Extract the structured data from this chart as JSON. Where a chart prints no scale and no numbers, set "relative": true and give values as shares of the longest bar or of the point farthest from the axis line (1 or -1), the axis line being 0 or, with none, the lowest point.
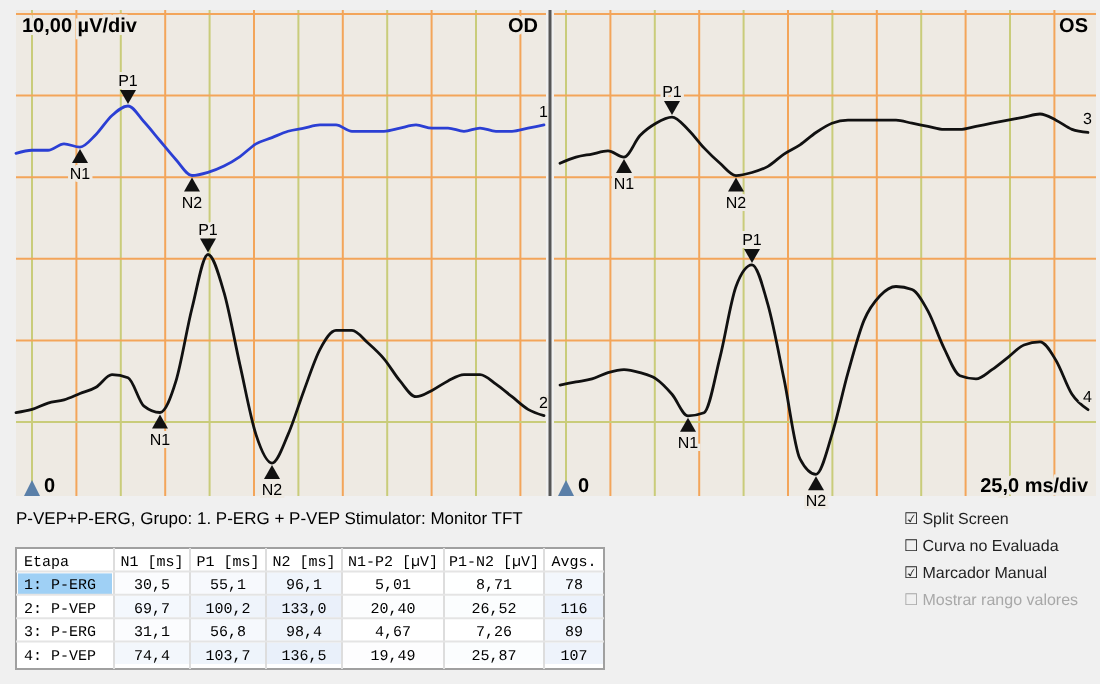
{
  "chart_data": [
    {
      "type": "line",
      "title": "OD",
      "relative": true,
      "grid": true,
      "categories": [
        null,
        null,
        null,
        null,
        null,
        null,
        null,
        null,
        null,
        null,
        null,
        null,
        null,
        null,
        null,
        null,
        null,
        null,
        null,
        null,
        null,
        null,
        null,
        null,
        null,
        null,
        null,
        null,
        null,
        null,
        null,
        null,
        null,
        null
      ],
      "annotations": [
        "10,00 µV/div",
        "0",
        {
          "text": "N1",
          "y": 0.87
        },
        {
          "text": "P1",
          "y": 1
        },
        {
          "text": "N2",
          "y": 0.78
        },
        {
          "text": "N1",
          "y": 0.03
        },
        {
          "text": "P1",
          "y": 0.53
        },
        {
          "text": "N2",
          "y": -0.13
        }
      ],
      "series": [
        {
          "name": "1",
          "color": "#2b3fd4",
          "values": [
            0.85,
            0.86,
            0.86,
            0.88,
            0.87,
            0.91,
            0.97,
            1,
            0.95,
            0.89,
            0.83,
            0.78,
            0.79,
            0.81,
            0.84,
            0.88,
            0.9,
            0.92,
            0.93,
            0.94,
            0.94,
            0.92,
            0.92,
            0.92,
            0.93,
            0.94,
            0.93,
            0.93,
            0.92,
            0.93,
            0.92,
            0.92,
            0.93,
            0.94
          ]
        },
        {
          "name": "2",
          "color": "#111111",
          "values": [
            0.03,
            0.04,
            0.06,
            0.07,
            0.09,
            0.11,
            0.15,
            0.14,
            0.05,
            0.03,
            0.13,
            0.36,
            0.53,
            0.41,
            0.18,
            -0.04,
            -0.13,
            -0.04,
            0.1,
            0.23,
            0.29,
            0.29,
            0.25,
            0.2,
            0.13,
            0.08,
            0.1,
            0.13,
            0.15,
            0.15,
            0.12,
            0.08,
            0.04,
            0.02
          ]
        }
      ]
    },
    {
      "type": "line",
      "title": "OS",
      "relative": true,
      "grid": true,
      "categories": [
        null,
        null,
        null,
        null,
        null,
        null,
        null,
        null,
        null,
        null,
        null,
        null,
        null,
        null,
        null,
        null,
        null,
        null,
        null,
        null,
        null,
        null,
        null,
        null,
        null,
        null,
        null,
        null,
        null,
        null,
        null,
        null,
        null,
        null
      ],
      "annotations": [
        "0",
        "25,0 ms/div",
        {
          "text": "N1",
          "y": 0.86
        },
        {
          "text": "P1",
          "y": 0.99
        },
        {
          "text": "N2",
          "y": 0.8
        },
        {
          "text": "N1",
          "y": 0.02
        },
        {
          "text": "P1",
          "y": 0.51
        },
        {
          "text": "N2",
          "y": -0.17
        }
      ],
      "series": [
        {
          "name": "3",
          "color": "#111111",
          "values": [
            0.84,
            0.86,
            0.87,
            0.88,
            0.86,
            0.93,
            0.97,
            0.99,
            0.95,
            0.89,
            0.84,
            0.8,
            0.81,
            0.83,
            0.87,
            0.9,
            0.94,
            0.97,
            0.98,
            0.98,
            0.98,
            0.98,
            0.97,
            0.96,
            0.95,
            0.95,
            0.96,
            0.97,
            0.98,
            0.99,
            1,
            0.98,
            0.95,
            0.94
          ]
        },
        {
          "name": "4",
          "color": "#111111",
          "values": [
            0.12,
            0.13,
            0.14,
            0.16,
            0.17,
            0.16,
            0.14,
            0.09,
            0.02,
            0.03,
            0.21,
            0.44,
            0.51,
            0.38,
            0.14,
            -0.12,
            -0.17,
            -0.04,
            0.16,
            0.33,
            0.41,
            0.44,
            0.43,
            0.36,
            0.24,
            0.15,
            0.14,
            0.17,
            0.21,
            0.25,
            0.26,
            0.2,
            0.09,
            0.04
          ]
        }
      ]
    },
    {
      "type": "heatmap",
      "title": "P-VEP+P-ERG, Grupo: 1. P-ERG + P-VEP  Stimulator: Monitor TFT",
      "ylabel": "Etapa",
      "categories": [
        "N1 [ms]",
        "P1 [ms]",
        "N2 [ms]",
        "N1-P2 [µV]",
        "P1-N2 [µV]",
        "Avgs."
      ],
      "y_categories": [
        "1: P-ERG",
        "2: P-VEP",
        "3: P-ERG",
        "4: P-VEP"
      ],
      "cells": [
        [
          30.5,
          55.1,
          96.1,
          5.01,
          8.71,
          78
        ],
        [
          69.7,
          100.2,
          133.0,
          20.4,
          26.52,
          116
        ],
        [
          31.1,
          56.8,
          98.4,
          4.67,
          7.26,
          89
        ],
        [
          74.4,
          103.7,
          136.5,
          19.49,
          25.87,
          107
        ]
      ],
      "cell_labels": [
        [
          "30,5",
          "55,1",
          "96,1",
          "5,01",
          "8,71",
          "78"
        ],
        [
          "69,7",
          "100,2",
          "133,0",
          "20,40",
          "26,52",
          "116"
        ],
        [
          "31,1",
          "56,8",
          "98,4",
          "4,67",
          "7,26",
          "89"
        ],
        [
          "74,4",
          "103,7",
          "136,5",
          "19,49",
          "25,87",
          "107"
        ]
      ],
      "annotations": [
        "☑ Split Screen",
        "☐ Curva no Evaluada",
        "☑ Marcador Manual",
        "☐ Mostrar rango valores"
      ]
    }
  ]
}
